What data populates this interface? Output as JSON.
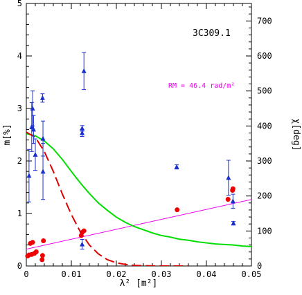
{
  "chart_data": {
    "type": "scatter",
    "title": "3C309.1",
    "xlabel": "λ² [m²]",
    "ylabel_left": "m[%]",
    "ylabel_right": "χ[deg]",
    "annotation": "RM =  46.4 rad/m²",
    "xlim": [
      0,
      0.05
    ],
    "ylim_left": [
      0,
      5
    ],
    "ylim_right": [
      0,
      750
    ],
    "x_ticks": [
      "0",
      "0.01",
      "0.02",
      "0.03",
      "0.04",
      "0.05"
    ],
    "y_ticks_left": [
      "0",
      "1",
      "2",
      "3",
      "4",
      "5"
    ],
    "y_ticks_right": [
      "0",
      "100",
      "200",
      "300",
      "400",
      "500",
      "600",
      "700"
    ],
    "colors": {
      "polarization_points": "#ee0000",
      "angle_points": "#1a2fcc",
      "rm_fit": "#ee00ee",
      "model_solid": "#00dd00",
      "model_dashed": "#dd0000",
      "annotation": "#ee00ee"
    },
    "series": [
      {
        "marker": "circle",
        "axis": "left",
        "points": [
          [
            0.0003,
            0.19
          ],
          [
            0.0006,
            0.21
          ],
          [
            0.0009,
            0.43
          ],
          [
            0.0012,
            0.22
          ],
          [
            0.0014,
            0.45
          ],
          [
            0.0018,
            0.24
          ],
          [
            0.0022,
            0.27
          ],
          [
            0.0035,
            0.12
          ],
          [
            0.0036,
            0.2
          ],
          [
            0.0038,
            0.48
          ],
          [
            0.0122,
            0.58
          ],
          [
            0.0124,
            0.64
          ],
          [
            0.0128,
            0.67
          ],
          [
            0.0335,
            1.07
          ],
          [
            0.0448,
            1.27
          ],
          [
            0.0458,
            1.44
          ],
          [
            0.0459,
            1.47
          ]
        ]
      },
      {
        "marker": "triangle",
        "axis": "right",
        "points": [
          [
            0.0006,
            258,
            75
          ],
          [
            0.0012,
            397,
            70
          ],
          [
            0.0014,
            450,
            50
          ],
          [
            0.0016,
            390,
            40
          ],
          [
            0.002,
            318,
            45
          ],
          [
            0.0036,
            480,
            12
          ],
          [
            0.0037,
            270,
            80
          ],
          [
            0.0037,
            364,
            50
          ],
          [
            0.0124,
            380,
            10
          ],
          [
            0.0124,
            393,
            8
          ],
          [
            0.0128,
            557,
            53
          ],
          [
            0.0124,
            62,
            14
          ],
          [
            0.0334,
            283,
            6
          ],
          [
            0.0449,
            252,
            50
          ],
          [
            0.0459,
            185,
            20
          ],
          [
            0.046,
            122,
            5
          ]
        ]
      },
      {
        "type": "line",
        "style": "thin",
        "axis": "right",
        "x": [
          0,
          0.05
        ],
        "y": [
          48,
          190
        ]
      },
      {
        "type": "line",
        "style": "solid",
        "axis": "left",
        "x": [
          0,
          0.002,
          0.004,
          0.006,
          0.008,
          0.01,
          0.012,
          0.014,
          0.016,
          0.018,
          0.02,
          0.022,
          0.024,
          0.026,
          0.028,
          0.03,
          0.032,
          0.034,
          0.036,
          0.038,
          0.04,
          0.042,
          0.044,
          0.046,
          0.048,
          0.05
        ],
        "y": [
          2.52,
          2.48,
          2.38,
          2.23,
          2.03,
          1.8,
          1.58,
          1.38,
          1.2,
          1.06,
          0.93,
          0.83,
          0.75,
          0.69,
          0.63,
          0.58,
          0.55,
          0.51,
          0.49,
          0.46,
          0.44,
          0.42,
          0.41,
          0.4,
          0.38,
          0.37
        ]
      },
      {
        "type": "line",
        "style": "dashed",
        "axis": "left",
        "x": [
          0,
          0.002,
          0.004,
          0.006,
          0.008,
          0.01,
          0.012,
          0.014,
          0.016,
          0.018,
          0.02,
          0.022,
          0.024,
          0.026,
          0.028,
          0.03,
          0.032,
          0.034,
          0.036
        ],
        "y": [
          2.55,
          2.45,
          2.18,
          1.8,
          1.37,
          0.98,
          0.65,
          0.4,
          0.23,
          0.12,
          0.06,
          0.03,
          0.012,
          0.005,
          0.002,
          0.0008,
          0.0003,
          0.0001,
          0.0
        ]
      }
    ]
  }
}
